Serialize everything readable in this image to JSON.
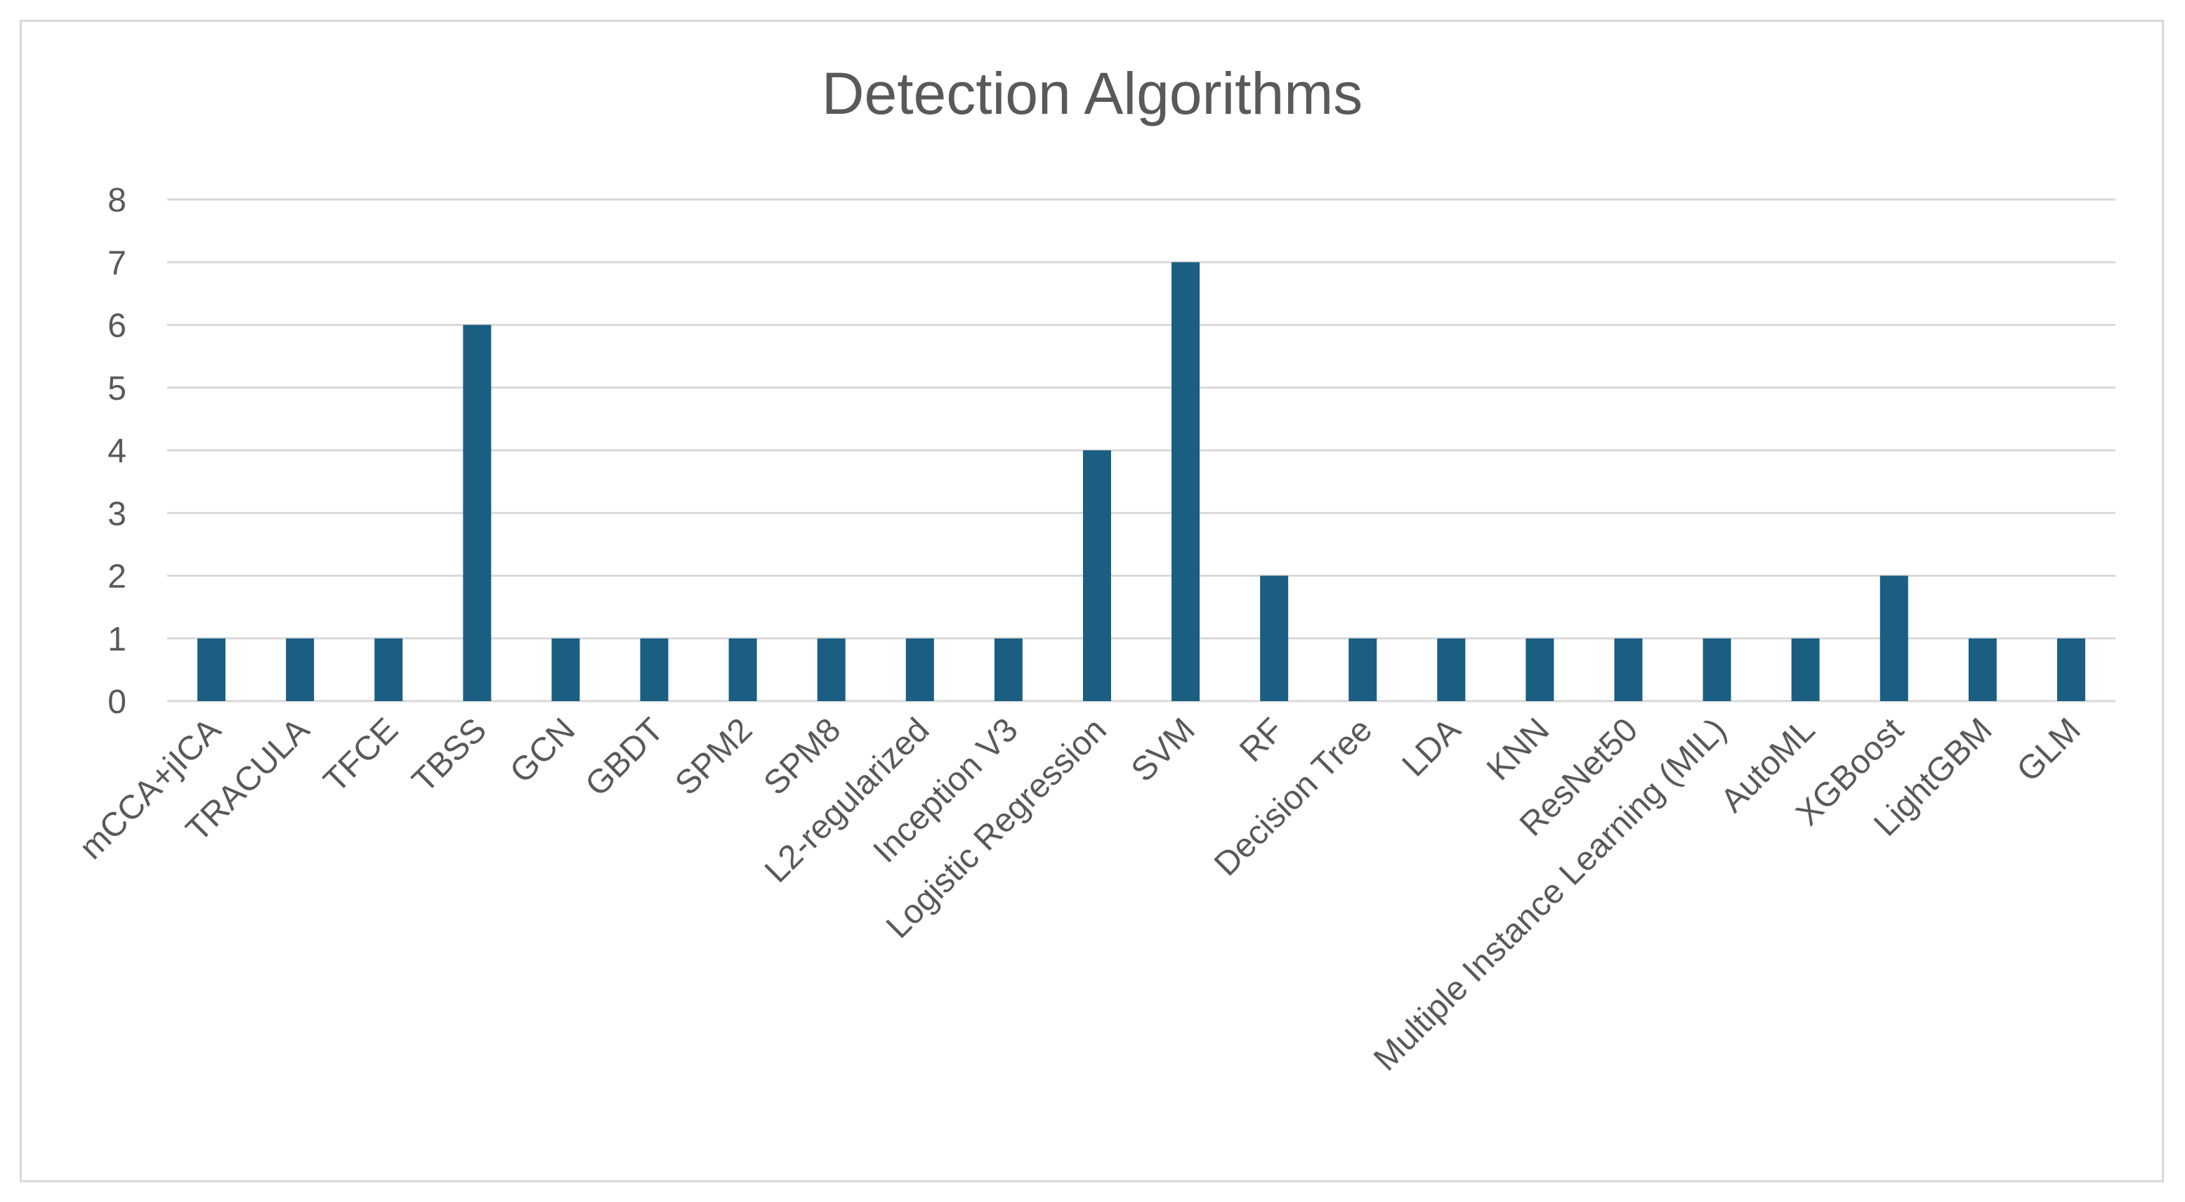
{
  "chart_data": {
    "type": "bar",
    "title": "Detection Algorithms",
    "xlabel": "",
    "ylabel": "",
    "ylim": [
      0,
      8
    ],
    "yticks": [
      "0",
      "1",
      "2",
      "3",
      "4",
      "5",
      "6",
      "7",
      "8"
    ],
    "grid": true,
    "legend": "none",
    "bar_color": "#1a5e82",
    "categories": [
      "mCCA+jICA",
      "TRACULA",
      "TFCE",
      "TBSS",
      "GCN",
      "GBDT",
      "SPM2",
      "SPM8",
      "L2-regularized",
      "Inception V3",
      "Logistic Regression",
      "SVM",
      "RF",
      "Decision Tree",
      "LDA",
      "KNN",
      "ResNet50",
      "Multiple Instance Learning (MIL)",
      "AutoML",
      "XGBoost",
      "LightGBM",
      "GLM"
    ],
    "values": [
      1,
      1,
      1,
      6,
      1,
      1,
      1,
      1,
      1,
      1,
      4,
      7,
      2,
      1,
      1,
      1,
      1,
      1,
      1,
      2,
      1,
      1
    ]
  }
}
